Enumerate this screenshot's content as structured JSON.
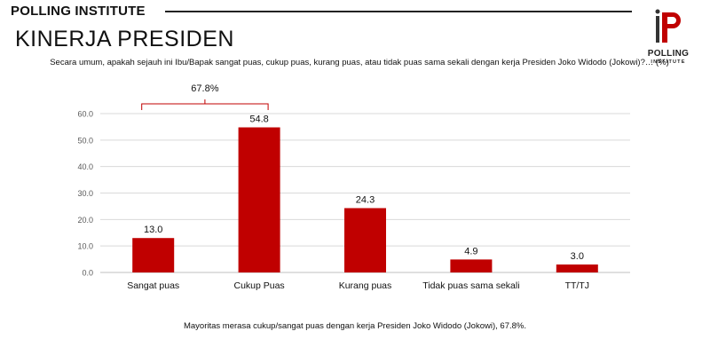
{
  "header": {
    "brand": "POLLING INSTITUTE",
    "logo_text": "POLLING",
    "logo_subtext": "INSTITUTE"
  },
  "title": "KINERJA PRESIDEN",
  "question": "Secara umum, apakah sejauh ini Ibu/Bapak sangat puas, cukup puas, kurang puas, atau tidak puas sama sekali dengan kerja Presiden Joko Widodo (Jokowi)?… (%)",
  "footnote": "Mayoritas merasa cukup/sangat puas dengan kerja Presiden Joko Widodo (Jokowi), 67.8%.",
  "colors": {
    "bar": "#c00000",
    "bracket": "#c00000",
    "grid": "#d9d9d9",
    "axis_text": "#595959"
  },
  "chart_data": {
    "type": "bar",
    "categories": [
      "Sangat puas",
      "Cukup Puas",
      "Kurang puas",
      "Tidak puas sama sekali",
      "TT/TJ"
    ],
    "values": [
      13.0,
      54.8,
      24.3,
      4.9,
      3.0
    ],
    "value_labels": [
      "13.0",
      "54.8",
      "24.3",
      "4.9",
      "3.0"
    ],
    "ylim": [
      0,
      60
    ],
    "yticks": [
      "0.0",
      "10.0",
      "20.0",
      "30.0",
      "40.0",
      "50.0",
      "60.0"
    ],
    "ytick_values": [
      0,
      10,
      20,
      30,
      40,
      50,
      60
    ],
    "grid": true,
    "legend": "none",
    "annotation": {
      "label": "67.8%",
      "spans_categories": [
        0,
        1
      ]
    }
  }
}
